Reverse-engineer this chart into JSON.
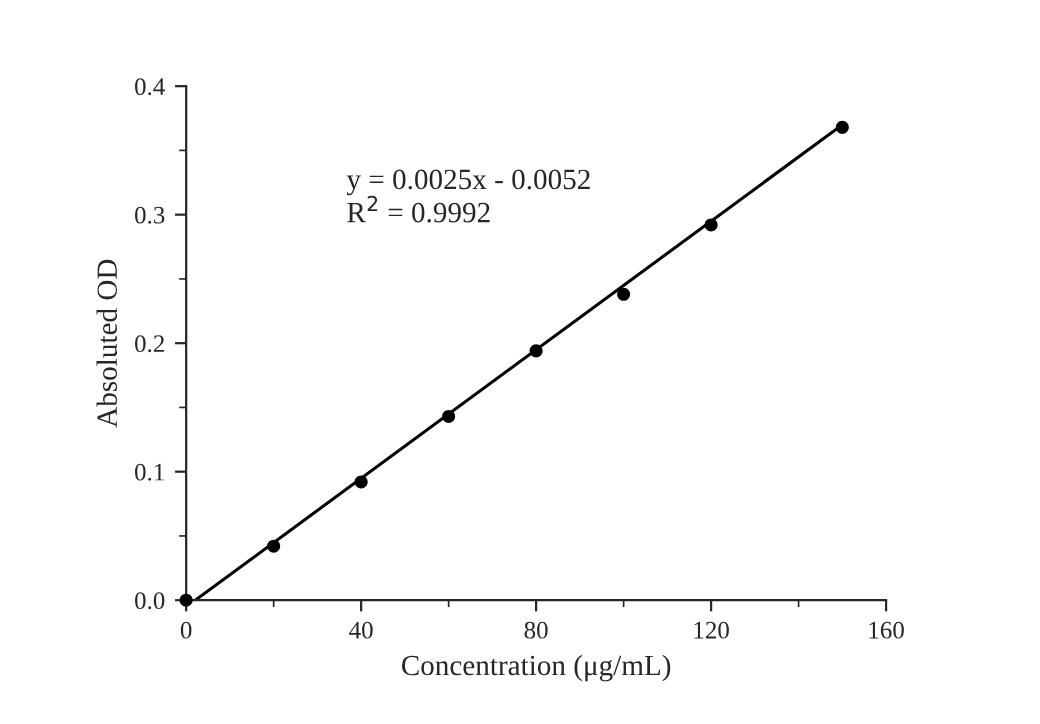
{
  "chart_data": {
    "type": "scatter",
    "xlabel": "Concentration (μg/mL)",
    "ylabel": "Absoluted OD",
    "x": [
      0,
      20,
      40,
      60,
      80,
      100,
      120,
      150
    ],
    "series": [
      {
        "color": "#000000",
        "marker": "circle",
        "values": [
          0,
          0.042,
          0.092,
          0.143,
          0.194,
          0.238,
          0.292,
          0.368
        ]
      },
      {
        "type": "line",
        "color": "#000000",
        "x": [
          2.08,
          150
        ],
        "values": [
          0,
          0.37
        ]
      }
    ],
    "annotations": [
      "y = 0.0025x - 0.0052",
      "R$^{2}$ = 0.9992"
    ],
    "xlim": [
      0,
      160
    ],
    "xticks": [
      0,
      40,
      80,
      120,
      160
    ],
    "ylim": [
      0,
      0.4
    ],
    "yticks": [
      {
        "value": 0,
        "label": "0.0"
      },
      0.1,
      0.2,
      0.3,
      0.4
    ],
    "grid": false,
    "legend": false
  }
}
